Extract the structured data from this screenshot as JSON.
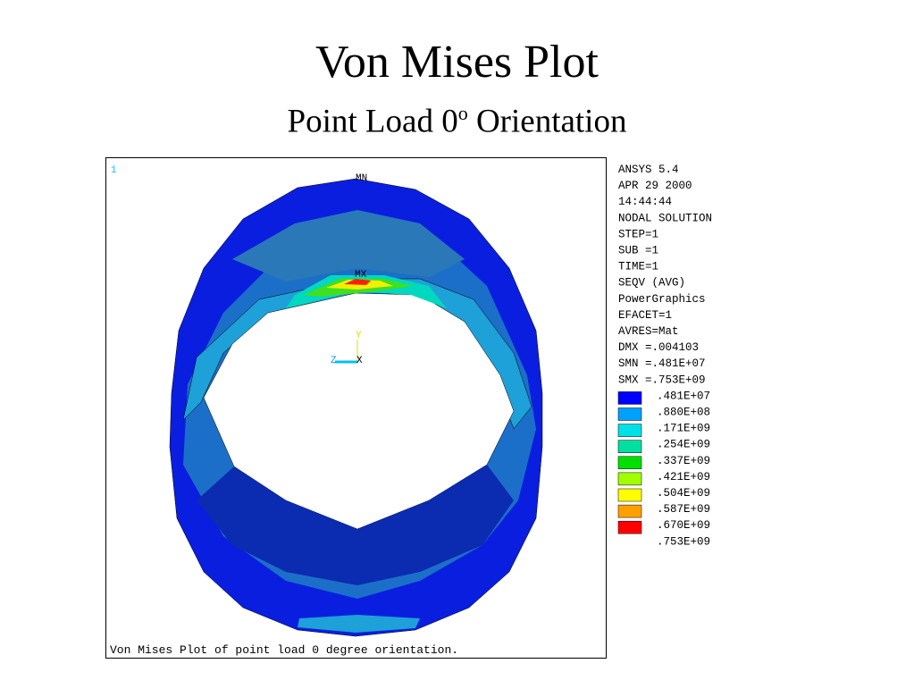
{
  "header": {
    "title": "Von Mises Plot",
    "subtitle": "Point Load 0",
    "subtitle_sup": "o",
    "subtitle_end": "Orientation"
  },
  "plot": {
    "window_number": "1",
    "min_marker": "MN",
    "max_marker": "MX",
    "axis_y": "Y",
    "axis_z": "Z",
    "axis_x": "X",
    "caption": "Von Mises Plot of point load 0 degree orientation."
  },
  "info": [
    "ANSYS 5.4",
    "APR 29 2000",
    "14:44:44",
    "NODAL SOLUTION",
    "STEP=1",
    "SUB =1",
    "TIME=1",
    "SEQV     (AVG)",
    "PowerGraphics",
    "EFACET=1",
    "AVRES=Mat",
    "DMX =.004103",
    "SMN =.481E+07",
    "SMX =.753E+09"
  ],
  "legend": [
    {
      "label": ".481E+07",
      "color": "#0000ff"
    },
    {
      "label": ".880E+08",
      "color": "#00a0ff"
    },
    {
      "label": ".171E+09",
      "color": "#00e0e8"
    },
    {
      "label": ".254E+09",
      "color": "#00e0a0"
    },
    {
      "label": ".337E+09",
      "color": "#00e000"
    },
    {
      "label": ".421E+09",
      "color": "#a0ff00"
    },
    {
      "label": ".504E+09",
      "color": "#ffff00"
    },
    {
      "label": ".587E+09",
      "color": "#ffa000"
    },
    {
      "label": ".670E+09",
      "color": "#ff0000"
    },
    {
      "label": ".753E+09"
    }
  ]
}
